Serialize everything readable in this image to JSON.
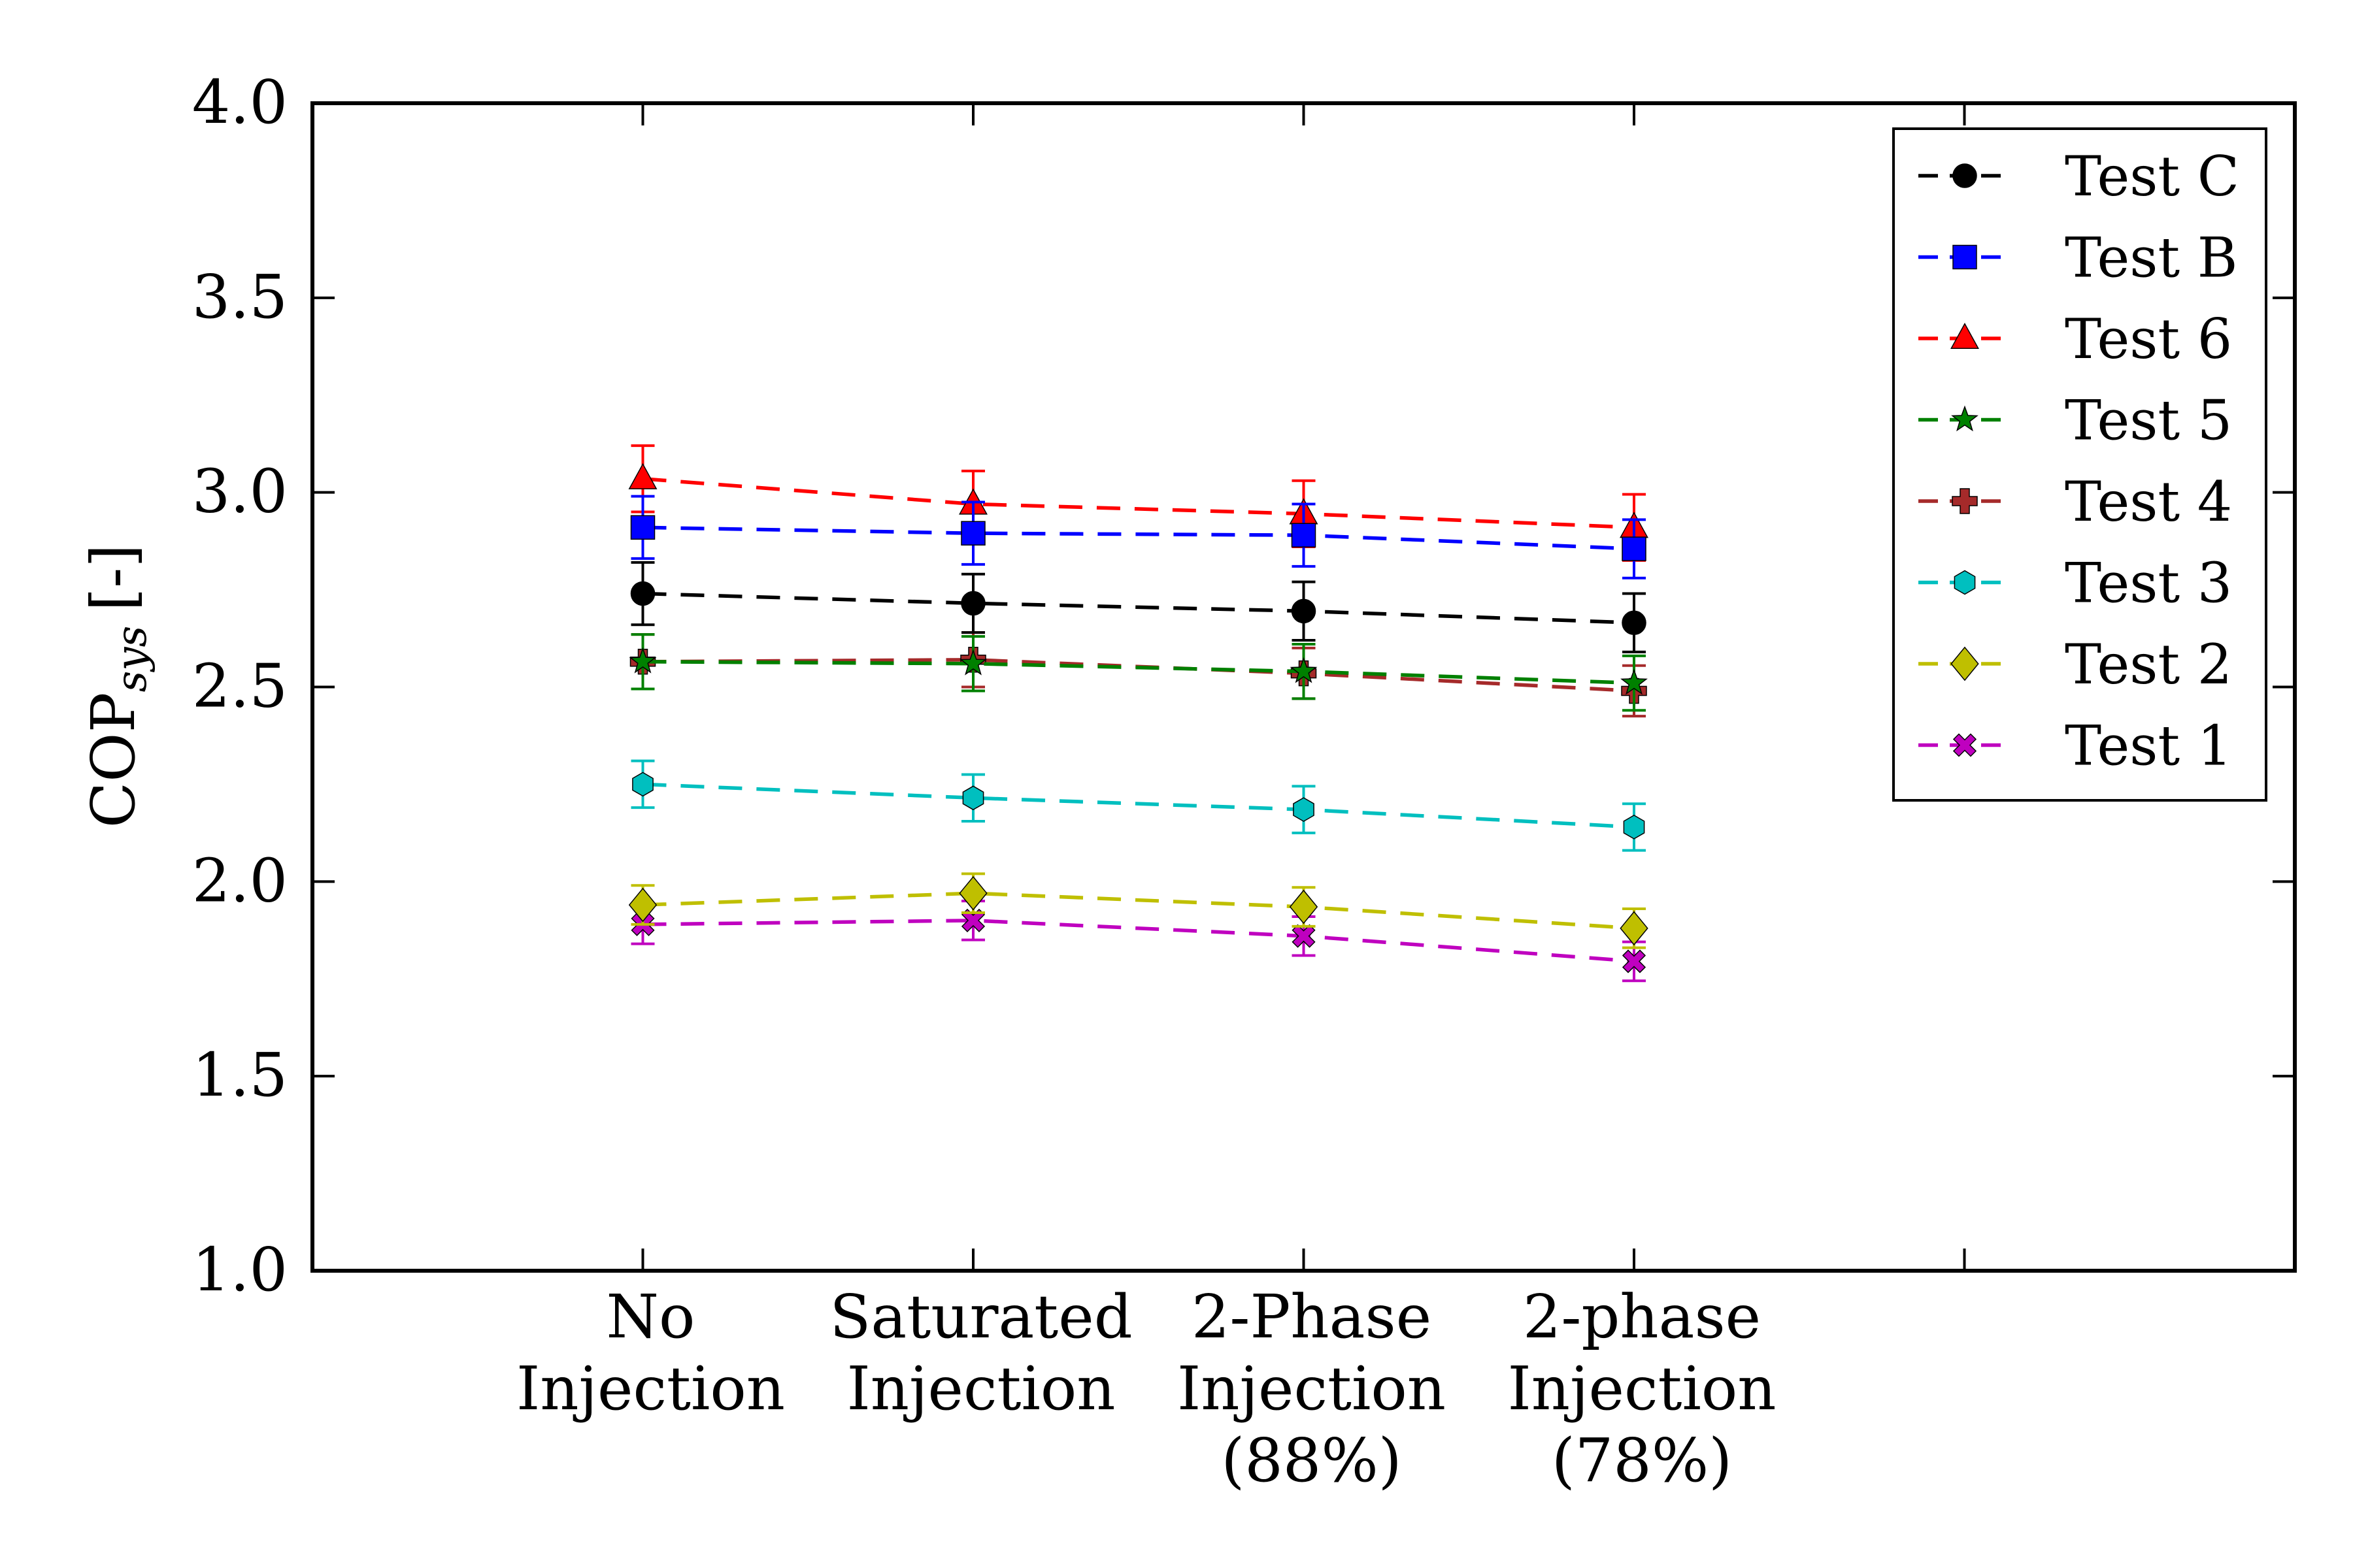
{
  "chart_data": {
    "type": "line",
    "ylabel": "COP",
    "ylabel_subscript": "sys",
    "ylabel_unit": "[-]",
    "ylim": [
      1.0,
      4.0
    ],
    "yticks": [
      1.0,
      1.5,
      2.0,
      2.5,
      3.0,
      3.5,
      4.0
    ],
    "ytick_labels": [
      "1.0",
      "1.5",
      "2.0",
      "2.5",
      "3.0",
      "3.5",
      "4.0"
    ],
    "xlim": [
      0,
      6
    ],
    "xticks": [
      1,
      2,
      3,
      4,
      5
    ],
    "categories": [
      {
        "x": 1,
        "lines": [
          "No",
          "Injection"
        ]
      },
      {
        "x": 2,
        "lines": [
          "Saturated",
          "Injection"
        ]
      },
      {
        "x": 3,
        "lines": [
          "2-Phase",
          "Injection",
          "(88%)"
        ]
      },
      {
        "x": 4,
        "lines": [
          "2-phase",
          "Injection",
          "(78%)"
        ]
      }
    ],
    "grid": false,
    "legend_position": "top-right",
    "series": [
      {
        "name": "Test C",
        "color": "#000000",
        "marker": "circle",
        "x": [
          1,
          2,
          3,
          4
        ],
        "y": [
          2.74,
          2.715,
          2.695,
          2.665
        ],
        "err": [
          0.08,
          0.075,
          0.075,
          0.075
        ]
      },
      {
        "name": "Test B",
        "color": "#0000ff",
        "marker": "square",
        "x": [
          1,
          2,
          3,
          4
        ],
        "y": [
          2.91,
          2.895,
          2.89,
          2.855
        ],
        "err": [
          0.08,
          0.08,
          0.08,
          0.075
        ]
      },
      {
        "name": "Test 6",
        "color": "#ff0000",
        "marker": "triangle",
        "x": [
          1,
          2,
          3,
          4
        ],
        "y": [
          3.035,
          2.97,
          2.945,
          2.91
        ],
        "err": [
          0.085,
          0.085,
          0.085,
          0.085
        ]
      },
      {
        "name": "Test 5",
        "color": "#008000",
        "marker": "star",
        "x": [
          1,
          2,
          3,
          4
        ],
        "y": [
          2.565,
          2.56,
          2.54,
          2.51
        ],
        "err": [
          0.07,
          0.07,
          0.07,
          0.07
        ]
      },
      {
        "name": "Test 4",
        "color": "#a52a2a",
        "marker": "plus",
        "x": [
          1,
          2,
          3,
          4
        ],
        "y": [
          2.565,
          2.57,
          2.535,
          2.49
        ],
        "err": [
          0.07,
          0.07,
          0.065,
          0.065
        ]
      },
      {
        "name": "Test 3",
        "color": "#00bfbf",
        "marker": "hexagon",
        "x": [
          1,
          2,
          3,
          4
        ],
        "y": [
          2.25,
          2.215,
          2.185,
          2.14
        ],
        "err": [
          0.06,
          0.06,
          0.06,
          0.06
        ]
      },
      {
        "name": "Test 2",
        "color": "#bfbf00",
        "marker": "diamond",
        "x": [
          1,
          2,
          3,
          4
        ],
        "y": [
          1.94,
          1.97,
          1.935,
          1.88
        ],
        "err": [
          0.05,
          0.05,
          0.05,
          0.05
        ]
      },
      {
        "name": "Test 1",
        "color": "#bf00bf",
        "marker": "x",
        "x": [
          1,
          2,
          3,
          4
        ],
        "y": [
          1.89,
          1.9,
          1.86,
          1.795
        ],
        "err": [
          0.05,
          0.05,
          0.05,
          0.05
        ]
      }
    ]
  }
}
